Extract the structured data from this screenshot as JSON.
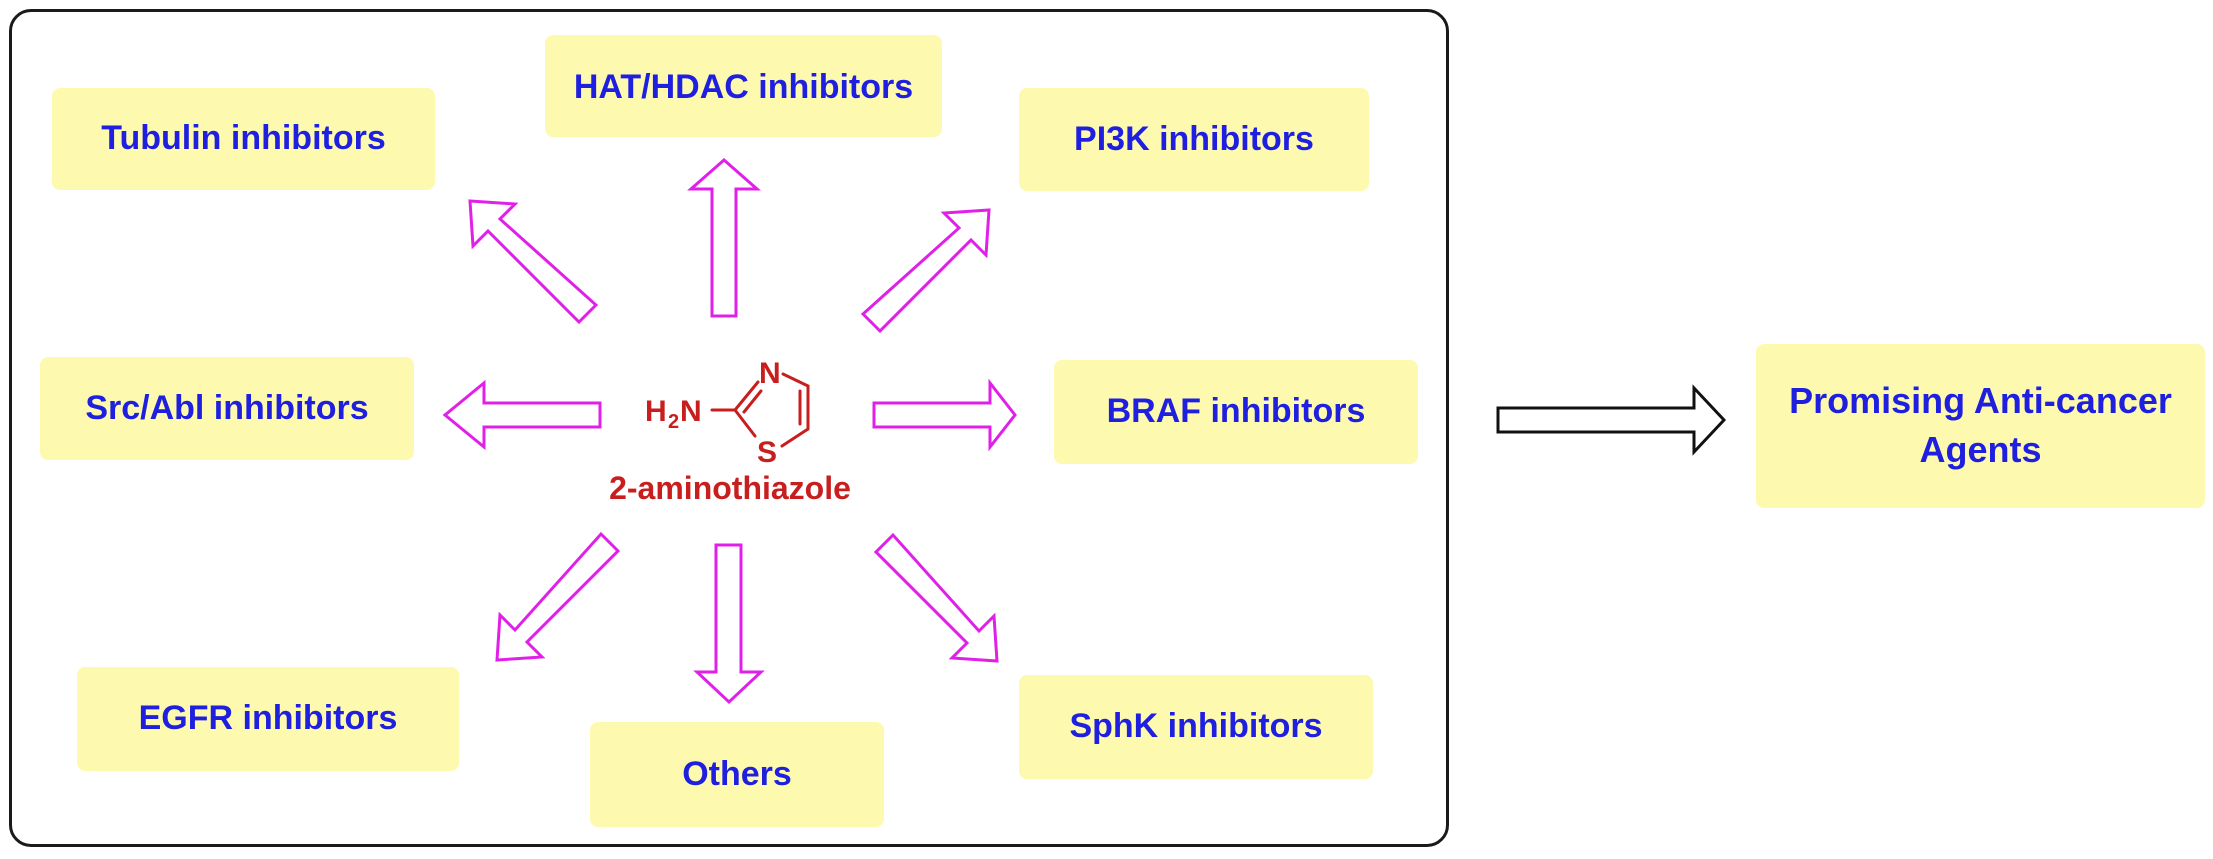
{
  "diagram": {
    "center_compound": {
      "name": "2-aminothiazole",
      "atoms": {
        "amine": "H",
        "amine_sub": "2",
        "amine_n": "N",
        "ring_n": "N",
        "ring_s": "S"
      }
    },
    "targets": [
      {
        "id": "tubulin",
        "label": "Tubulin inhibitors"
      },
      {
        "id": "hat-hdac",
        "label": "HAT/HDAC inhibitors"
      },
      {
        "id": "pi3k",
        "label": "PI3K inhibitors"
      },
      {
        "id": "src-abl",
        "label": "Src/Abl inhibitors"
      },
      {
        "id": "braf",
        "label": "BRAF inhibitors"
      },
      {
        "id": "egfr",
        "label": "EGFR inhibitors"
      },
      {
        "id": "others",
        "label": "Others"
      },
      {
        "id": "sphk",
        "label": "SphK inhibitors"
      }
    ],
    "outcome": {
      "line1": "Promising Anti-cancer",
      "line2": "Agents"
    },
    "colors": {
      "box_fill": "#fdfab0",
      "label_text": "#1f1fe0",
      "compound": "#c81e1e",
      "radial_arrow": "#e020e8",
      "outcome_arrow": "#111111",
      "frame": "#1a1a1a"
    }
  }
}
